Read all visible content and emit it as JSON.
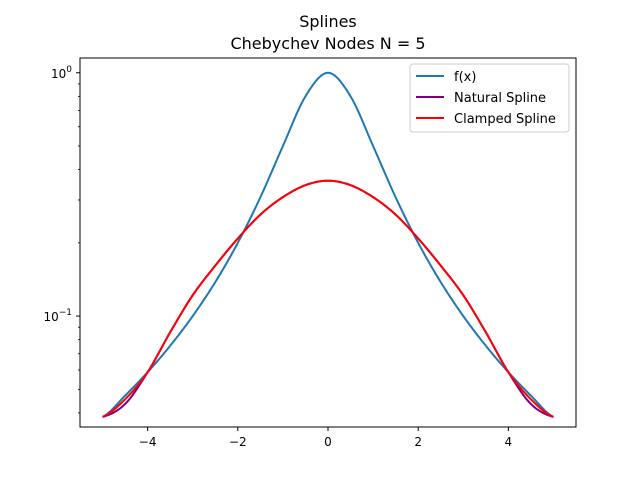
{
  "chart_data": {
    "type": "line",
    "title": "Splines",
    "subtitle": "Chebychev Nodes N = 5",
    "xlabel": "",
    "ylabel": "",
    "xlim": [
      -5.5,
      5.5
    ],
    "ylim": [
      0.035,
      1.15
    ],
    "yscale": "log",
    "grid": false,
    "legend_position": "top-right",
    "x_ticks": [
      {
        "value": -4,
        "label": "−4"
      },
      {
        "value": -2,
        "label": "−2"
      },
      {
        "value": 0,
        "label": "0"
      },
      {
        "value": 2,
        "label": "2"
      },
      {
        "value": 4,
        "label": "4"
      }
    ],
    "y_ticks": [
      {
        "value": 0.1,
        "base": "10",
        "exp": "−1"
      },
      {
        "value": 1,
        "base": "10",
        "exp": "0"
      }
    ],
    "series": [
      {
        "name": "f(x)",
        "color": "#1f77b4",
        "x": [
          -5,
          -4.5,
          -4,
          -3.5,
          -3,
          -2.5,
          -2,
          -1.5,
          -1,
          -0.5,
          0,
          0.5,
          1,
          1.5,
          2,
          2.5,
          3,
          3.5,
          4,
          4.5,
          5
        ],
        "y": [
          0.0385,
          0.0471,
          0.0588,
          0.0755,
          0.1,
          0.1379,
          0.2,
          0.3077,
          0.5,
          0.8,
          1.0,
          0.8,
          0.5,
          0.3077,
          0.2,
          0.1379,
          0.1,
          0.0755,
          0.0588,
          0.0471,
          0.0385
        ]
      },
      {
        "name": "Natural Spline",
        "color": "#800080",
        "x": [
          -5,
          -4.5,
          -4,
          -3.5,
          -3,
          -2.5,
          -2,
          -1.5,
          -1,
          -0.5,
          0,
          0.5,
          1,
          1.5,
          2,
          2.5,
          3,
          3.5,
          4,
          4.5,
          5
        ],
        "y": [
          0.0385,
          0.0435,
          0.0588,
          0.0858,
          0.1218,
          0.1612,
          0.2084,
          0.2612,
          0.3082,
          0.3452,
          0.36,
          0.3452,
          0.3082,
          0.2612,
          0.2084,
          0.1612,
          0.1218,
          0.0858,
          0.0588,
          0.0435,
          0.0385
        ]
      },
      {
        "name": "Clamped Spline",
        "color": "#ff0000",
        "x": [
          -5,
          -4.5,
          -4,
          -3.5,
          -3,
          -2.5,
          -2,
          -1.5,
          -1,
          -0.5,
          0,
          0.5,
          1,
          1.5,
          2,
          2.5,
          3,
          3.5,
          4,
          4.5,
          5
        ],
        "y": [
          0.0385,
          0.0455,
          0.0588,
          0.0858,
          0.1218,
          0.1612,
          0.2084,
          0.2612,
          0.3082,
          0.3452,
          0.36,
          0.3452,
          0.3082,
          0.2612,
          0.2084,
          0.1612,
          0.1218,
          0.0858,
          0.0588,
          0.0455,
          0.0385
        ]
      }
    ]
  }
}
